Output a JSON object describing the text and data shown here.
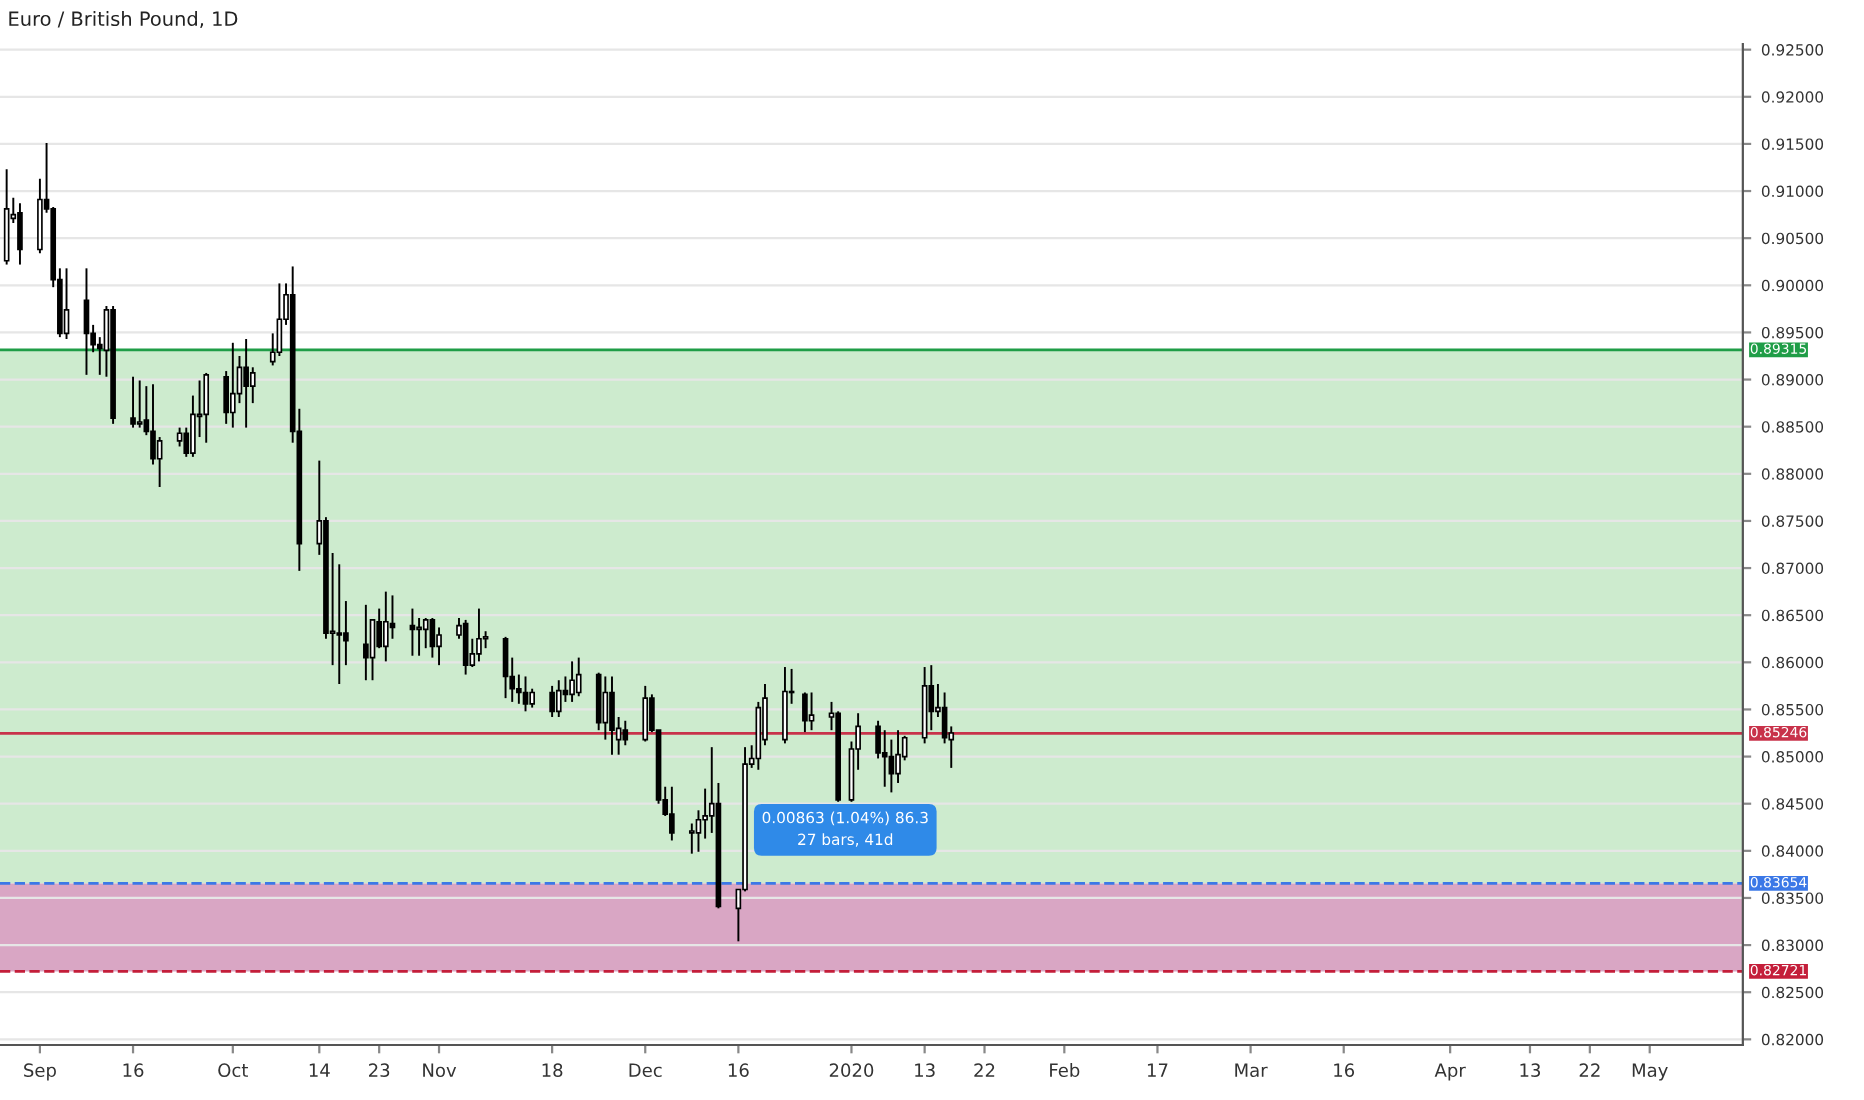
{
  "chart_data": {
    "type": "candlestick",
    "title": "Euro / British Pound, 1D",
    "x": [
      "2019-08-28",
      "2019-08-29",
      "2019-08-30",
      "2019-09-02",
      "2019-09-03",
      "2019-09-04",
      "2019-09-05",
      "2019-09-06",
      "2019-09-09",
      "2019-09-10",
      "2019-09-11",
      "2019-09-12",
      "2019-09-13",
      "2019-09-16",
      "2019-09-17",
      "2019-09-18",
      "2019-09-19",
      "2019-09-20",
      "2019-09-23",
      "2019-09-24",
      "2019-09-25",
      "2019-09-26",
      "2019-09-27",
      "2019-09-30",
      "2019-10-01",
      "2019-10-02",
      "2019-10-03",
      "2019-10-04",
      "2019-10-07",
      "2019-10-08",
      "2019-10-09",
      "2019-10-10",
      "2019-10-11",
      "2019-10-14",
      "2019-10-15",
      "2019-10-16",
      "2019-10-17",
      "2019-10-18",
      "2019-10-21",
      "2019-10-22",
      "2019-10-23",
      "2019-10-24",
      "2019-10-25",
      "2019-10-28",
      "2019-10-29",
      "2019-10-30",
      "2019-10-31",
      "2019-11-01",
      "2019-11-04",
      "2019-11-05",
      "2019-11-06",
      "2019-11-07",
      "2019-11-08",
      "2019-11-11",
      "2019-11-12",
      "2019-11-13",
      "2019-11-14",
      "2019-11-15",
      "2019-11-18",
      "2019-11-19",
      "2019-11-20",
      "2019-11-21",
      "2019-11-22",
      "2019-11-25",
      "2019-11-26",
      "2019-11-27",
      "2019-11-28",
      "2019-11-29",
      "2019-12-02",
      "2019-12-03",
      "2019-12-04",
      "2019-12-05",
      "2019-12-06",
      "2019-12-09",
      "2019-12-10",
      "2019-12-11",
      "2019-12-12",
      "2019-12-13",
      "2019-12-16",
      "2019-12-17",
      "2019-12-18",
      "2019-12-19",
      "2019-12-20",
      "2019-12-23",
      "2019-12-24",
      "2019-12-26",
      "2019-12-27",
      "2019-12-30",
      "2019-12-31",
      "2020-01-02",
      "2020-01-03",
      "2020-01-06",
      "2020-01-07",
      "2020-01-08",
      "2020-01-09",
      "2020-01-10",
      "2020-01-13",
      "2020-01-14",
      "2020-01-15",
      "2020-01-16",
      "2020-01-17"
    ],
    "ohlc": [
      [
        0.9026,
        0.9123,
        0.9022,
        0.9081
      ],
      [
        0.9071,
        0.9093,
        0.9066,
        0.9075
      ],
      [
        0.9077,
        0.9087,
        0.9022,
        0.9038
      ],
      [
        0.9038,
        0.9113,
        0.9034,
        0.9091
      ],
      [
        0.9091,
        0.9151,
        0.9077,
        0.9081
      ],
      [
        0.9081,
        0.9083,
        0.8998,
        0.9006
      ],
      [
        0.9006,
        0.9018,
        0.8945,
        0.8949
      ],
      [
        0.8949,
        0.9018,
        0.8943,
        0.8974
      ],
      [
        0.8984,
        0.9018,
        0.8905,
        0.8949
      ],
      [
        0.8949,
        0.8958,
        0.8929,
        0.8937
      ],
      [
        0.8937,
        0.8945,
        0.8905,
        0.8933
      ],
      [
        0.8931,
        0.8978,
        0.8903,
        0.8974
      ],
      [
        0.8974,
        0.8978,
        0.8853,
        0.8859
      ],
      [
        0.8859,
        0.8903,
        0.8849,
        0.8853
      ],
      [
        0.8853,
        0.8899,
        0.8849,
        0.8855
      ],
      [
        0.8857,
        0.8893,
        0.8841,
        0.8845
      ],
      [
        0.8845,
        0.8895,
        0.881,
        0.8816
      ],
      [
        0.8816,
        0.8839,
        0.8786,
        0.8835
      ],
      [
        0.8835,
        0.8849,
        0.8829,
        0.8843
      ],
      [
        0.8843,
        0.8849,
        0.8818,
        0.8822
      ],
      [
        0.8822,
        0.8883,
        0.8818,
        0.8863
      ],
      [
        0.8861,
        0.8899,
        0.8839,
        0.8863
      ],
      [
        0.8863,
        0.8907,
        0.8833,
        0.8905
      ],
      [
        0.8903,
        0.8909,
        0.8853,
        0.8865
      ],
      [
        0.8865,
        0.8939,
        0.8849,
        0.8885
      ],
      [
        0.8885,
        0.8925,
        0.8875,
        0.8913
      ],
      [
        0.8913,
        0.8943,
        0.8849,
        0.8893
      ],
      [
        0.8893,
        0.8913,
        0.8875,
        0.8907
      ],
      [
        0.8919,
        0.8949,
        0.8915,
        0.8929
      ],
      [
        0.8929,
        0.9002,
        0.8925,
        0.8964
      ],
      [
        0.8964,
        0.9002,
        0.8958,
        0.899
      ],
      [
        0.899,
        0.902,
        0.8833,
        0.8845
      ],
      [
        0.8845,
        0.8869,
        0.8697,
        0.8726
      ],
      [
        0.8726,
        0.8814,
        0.8714,
        0.875
      ],
      [
        0.875,
        0.8754,
        0.8625,
        0.8631
      ],
      [
        0.8631,
        0.8716,
        0.8597,
        0.8633
      ],
      [
        0.8631,
        0.8704,
        0.8577,
        0.8629
      ],
      [
        0.8631,
        0.8665,
        0.8597,
        0.8623
      ],
      [
        0.8619,
        0.8661,
        0.8581,
        0.8605
      ],
      [
        0.8605,
        0.8645,
        0.8581,
        0.8645
      ],
      [
        0.8643,
        0.8657,
        0.8615,
        0.8617
      ],
      [
        0.8617,
        0.8675,
        0.8601,
        0.8643
      ],
      [
        0.8641,
        0.8671,
        0.8625,
        0.8637
      ],
      [
        0.8639,
        0.8657,
        0.8607,
        0.8635
      ],
      [
        0.8635,
        0.8647,
        0.8607,
        0.8637
      ],
      [
        0.8635,
        0.8647,
        0.8615,
        0.8645
      ],
      [
        0.8645,
        0.8647,
        0.8605,
        0.8617
      ],
      [
        0.8617,
        0.8637,
        0.8597,
        0.8629
      ],
      [
        0.8629,
        0.8647,
        0.8625,
        0.8639
      ],
      [
        0.8641,
        0.8645,
        0.8587,
        0.8597
      ],
      [
        0.8597,
        0.8625,
        0.8595,
        0.8609
      ],
      [
        0.8609,
        0.8657,
        0.8601,
        0.8625
      ],
      [
        0.8625,
        0.8633,
        0.8615,
        0.8627
      ],
      [
        0.8625,
        0.8627,
        0.8562,
        0.8585
      ],
      [
        0.8585,
        0.8605,
        0.8558,
        0.8572
      ],
      [
        0.8572,
        0.8587,
        0.8556,
        0.8568
      ],
      [
        0.8568,
        0.8585,
        0.8548,
        0.8556
      ],
      [
        0.8556,
        0.8572,
        0.8552,
        0.8568
      ],
      [
        0.8568,
        0.8575,
        0.8542,
        0.8548
      ],
      [
        0.8548,
        0.8581,
        0.8542,
        0.857
      ],
      [
        0.857,
        0.8585,
        0.8558,
        0.8566
      ],
      [
        0.8566,
        0.8601,
        0.8558,
        0.8581
      ],
      [
        0.8568,
        0.8605,
        0.8564,
        0.8587
      ],
      [
        0.8587,
        0.8589,
        0.8528,
        0.8536
      ],
      [
        0.8536,
        0.8585,
        0.8518,
        0.8568
      ],
      [
        0.8568,
        0.8585,
        0.8502,
        0.8528
      ],
      [
        0.8518,
        0.8542,
        0.8502,
        0.853
      ],
      [
        0.8528,
        0.8538,
        0.8512,
        0.8518
      ],
      [
        0.8518,
        0.8575,
        0.8516,
        0.8562
      ],
      [
        0.8562,
        0.8566,
        0.8526,
        0.8528
      ],
      [
        0.8528,
        0.8528,
        0.845,
        0.8454
      ],
      [
        0.8454,
        0.8468,
        0.8437,
        0.8439
      ],
      [
        0.8439,
        0.8468,
        0.8411,
        0.8419
      ],
      [
        0.8419,
        0.8429,
        0.8397,
        0.8421
      ],
      [
        0.8419,
        0.8443,
        0.8399,
        0.8433
      ],
      [
        0.8433,
        0.8466,
        0.8413,
        0.8437
      ],
      [
        0.8437,
        0.851,
        0.8419,
        0.845
      ],
      [
        0.845,
        0.8472,
        0.8339,
        0.8341
      ],
      [
        0.8339,
        0.8359,
        0.8304,
        0.8359
      ],
      [
        0.8359,
        0.851,
        0.8357,
        0.8492
      ],
      [
        0.8492,
        0.8512,
        0.8488,
        0.8498
      ],
      [
        0.8498,
        0.8558,
        0.8486,
        0.8552
      ],
      [
        0.8518,
        0.8577,
        0.8512,
        0.8562
      ],
      [
        0.8518,
        0.8595,
        0.8514,
        0.8569
      ],
      [
        0.8569,
        0.8593,
        0.8556,
        0.8568
      ],
      [
        0.8566,
        0.8568,
        0.8526,
        0.8538
      ],
      [
        0.8538,
        0.8568,
        0.8528,
        0.8544
      ],
      [
        0.8542,
        0.8558,
        0.8528,
        0.8546
      ],
      [
        0.8546,
        0.8548,
        0.8452,
        0.8454
      ],
      [
        0.8454,
        0.8516,
        0.8452,
        0.8508
      ],
      [
        0.8508,
        0.8546,
        0.8486,
        0.8532
      ],
      [
        0.8532,
        0.8538,
        0.8498,
        0.8504
      ],
      [
        0.8504,
        0.8528,
        0.8468,
        0.85
      ],
      [
        0.85,
        0.8518,
        0.8462,
        0.8482
      ],
      [
        0.8482,
        0.8528,
        0.8472,
        0.8502
      ],
      [
        0.85,
        0.8522,
        0.8496,
        0.852
      ],
      [
        0.852,
        0.8595,
        0.8514,
        0.8575
      ],
      [
        0.8575,
        0.8597,
        0.8528,
        0.8548
      ],
      [
        0.8548,
        0.8577,
        0.8542,
        0.8552
      ],
      [
        0.8552,
        0.8568,
        0.8514,
        0.852
      ],
      [
        0.8518,
        0.8532,
        0.8488,
        0.8525
      ]
    ],
    "xlim": [
      "2019-08-27",
      "2020-05-15"
    ],
    "xticks": [
      {
        "value": "2019-09-02",
        "label": "Sep"
      },
      {
        "value": "2019-09-16",
        "label": "16"
      },
      {
        "value": "2019-10-01",
        "label": "Oct"
      },
      {
        "value": "2019-10-14",
        "label": "14"
      },
      {
        "value": "2019-10-23",
        "label": "23"
      },
      {
        "value": "2019-11-01",
        "label": "Nov"
      },
      {
        "value": "2019-11-18",
        "label": "18"
      },
      {
        "value": "2019-12-02",
        "label": "Dec"
      },
      {
        "value": "2019-12-16",
        "label": "16"
      },
      {
        "value": "2020-01-02",
        "label": "2020"
      },
      {
        "value": "2020-01-13",
        "label": "13"
      },
      {
        "value": "2020-01-22",
        "label": "22"
      },
      {
        "value": "2020-02-03",
        "label": "Feb"
      },
      {
        "value": "2020-02-17",
        "label": "17"
      },
      {
        "value": "2020-03-02",
        "label": "Mar"
      },
      {
        "value": "2020-03-16",
        "label": "16"
      },
      {
        "value": "2020-04-01",
        "label": "Apr"
      },
      {
        "value": "2020-04-13",
        "label": "13"
      },
      {
        "value": "2020-04-22",
        "label": "22"
      },
      {
        "value": "2020-05-01",
        "label": "May"
      }
    ],
    "ylim": [
      0.8194,
      0.9256
    ],
    "yticks": [
      {
        "value": 0.82,
        "label": "0.82000"
      },
      {
        "value": 0.825,
        "label": "0.82500"
      },
      {
        "value": 0.83,
        "label": "0.83000"
      },
      {
        "value": 0.835,
        "label": "0.83500"
      },
      {
        "value": 0.84,
        "label": "0.84000"
      },
      {
        "value": 0.845,
        "label": "0.84500"
      },
      {
        "value": 0.85,
        "label": "0.85000"
      },
      {
        "value": 0.855,
        "label": "0.85500"
      },
      {
        "value": 0.86,
        "label": "0.86000"
      },
      {
        "value": 0.865,
        "label": "0.86500"
      },
      {
        "value": 0.87,
        "label": "0.87000"
      },
      {
        "value": 0.875,
        "label": "0.87500"
      },
      {
        "value": 0.88,
        "label": "0.88000"
      },
      {
        "value": 0.885,
        "label": "0.88500"
      },
      {
        "value": 0.89,
        "label": "0.89000"
      },
      {
        "value": 0.895,
        "label": "0.89500"
      },
      {
        "value": 0.9,
        "label": "0.90000"
      },
      {
        "value": 0.905,
        "label": "0.90500"
      },
      {
        "value": 0.91,
        "label": "0.91000"
      },
      {
        "value": 0.915,
        "label": "0.91500"
      },
      {
        "value": 0.92,
        "label": "0.92000"
      },
      {
        "value": 0.925,
        "label": "0.92500"
      }
    ],
    "grid": "y",
    "bands": [
      {
        "axis": "y",
        "from": 0.83654,
        "to": 0.89315,
        "color": "#cdebce"
      },
      {
        "axis": "y",
        "from": 0.82721,
        "to": 0.83654,
        "color": "#d9a6c4"
      }
    ],
    "ref_lines": [
      {
        "axis": "y",
        "value": 0.89315,
        "label": "0.89315",
        "color": "#1f9d47",
        "line_style": "solid"
      },
      {
        "axis": "y",
        "value": 0.85246,
        "label": "0.85246",
        "color": "#c8324a",
        "line_style": "solid"
      },
      {
        "axis": "y",
        "value": 0.83654,
        "label": "0.83654",
        "color": "#3b78e7",
        "line_style": "dashed"
      },
      {
        "axis": "y",
        "value": 0.82721,
        "label": "0.82721",
        "color": "#c41e3a",
        "line_style": "dashed"
      }
    ],
    "annotations": [
      "0.00863 (1.04%) 86.3\n27 bars, 41d"
    ]
  }
}
